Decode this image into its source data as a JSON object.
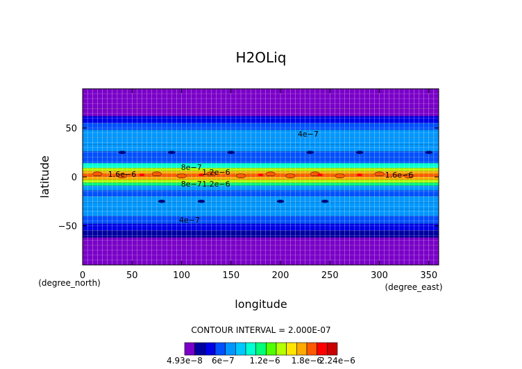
{
  "chart_data": {
    "type": "heatmap",
    "title": "H2OLiq",
    "xlabel": "longitude",
    "ylabel": "latitude",
    "x_unit": "(degree_east)",
    "y_unit": "(degree_north)",
    "xlim": [
      0,
      360
    ],
    "ylim": [
      -90,
      90
    ],
    "x_ticks": [
      "0",
      "50",
      "100",
      "150",
      "200",
      "250",
      "300",
      "350"
    ],
    "y_ticks": [
      "50",
      "0",
      "−50"
    ],
    "grid": true,
    "contour_interval_text": "CONTOUR INTERVAL = 2.000E-07",
    "colorbar": {
      "min": 4.93e-08,
      "max": 2.24e-06,
      "tick_labels": [
        "4.93e−8",
        "6e−7",
        "1.2e−6",
        "1.8e−6",
        "2.24e−6"
      ],
      "colors": [
        "#7a00c8",
        "#0000a0",
        "#0000e6",
        "#0050ff",
        "#0096ff",
        "#00c8ff",
        "#00ffd2",
        "#00ff78",
        "#50ff00",
        "#b4ff00",
        "#ffe600",
        "#ffaa00",
        "#ff5a00",
        "#ff0000",
        "#c80000"
      ]
    },
    "contour_labels": [
      "1.6e−6",
      "8e−7",
      "1.2e−6",
      "8e−7",
      "1.2e−6",
      "1.6e−6",
      "4e−7",
      "4e−7"
    ],
    "zonal_profile": {
      "latitude": [
        90,
        70,
        62,
        55,
        48,
        40,
        33,
        26,
        20,
        14,
        9,
        6,
        3,
        0,
        -3,
        -6,
        -9,
        -14,
        -20,
        -26,
        -33,
        -40,
        -48,
        -55,
        -62,
        -70,
        -90
      ],
      "value": [
        5e-08,
        5e-08,
        3e-07,
        4.5e-07,
        6.5e-07,
        8e-07,
        7e-07,
        6e-07,
        5.5e-07,
        7e-07,
        1.2e-06,
        1.6e-06,
        1.9e-06,
        1.8e-06,
        1.7e-06,
        1.3e-06,
        9e-07,
        6.5e-07,
        6e-07,
        7e-07,
        8e-07,
        7e-07,
        5e-07,
        3.5e-07,
        2e-07,
        5e-08,
        5e-08
      ]
    }
  }
}
